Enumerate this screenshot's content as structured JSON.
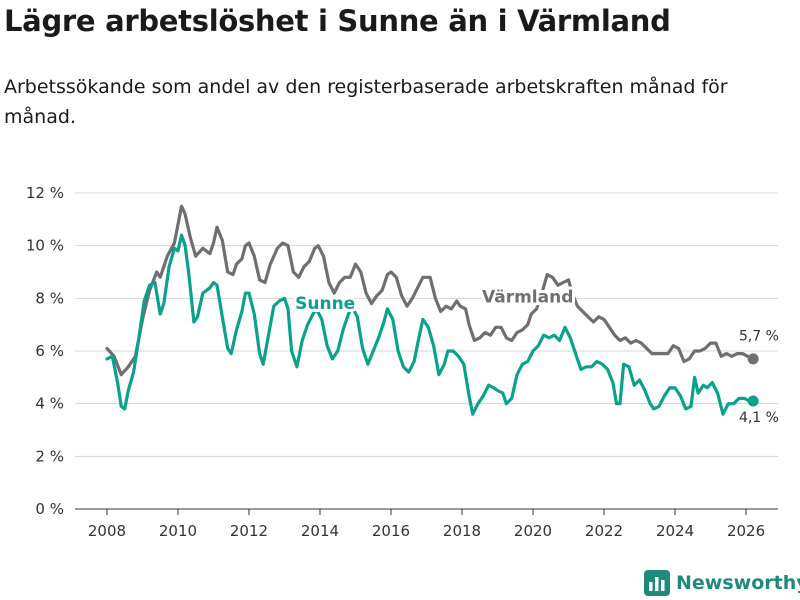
{
  "title": "Lägre arbetslöshet i Sunne än i Värmland",
  "subtitle": "Arbetssökande som andel av den registerbaserade arbetskraften månad för månad.",
  "logo": {
    "text": "Newsworthy",
    "icon": "bar-chart-logo-icon"
  },
  "colors": {
    "sunne": "#0aa28c",
    "varmland": "#6e6e73",
    "grid": "#d4d4d4",
    "brand": "#1f8a7a"
  },
  "chart_data": {
    "type": "line",
    "title": "Lägre arbetslöshet i Sunne än i Värmland",
    "xlabel": "",
    "ylabel": "",
    "xlim": [
      2007.1,
      2026.9
    ],
    "ylim": [
      0,
      12
    ],
    "x_ticks": [
      2008,
      2010,
      2012,
      2014,
      2016,
      2018,
      2020,
      2022,
      2024,
      2026
    ],
    "x_tick_labels": [
      "2008",
      "2010",
      "2012",
      "2014",
      "2016",
      "2018",
      "2020",
      "2022",
      "2024",
      "2026"
    ],
    "y_ticks": [
      0,
      2,
      4,
      6,
      8,
      10,
      12
    ],
    "y_tick_labels": [
      "0 %",
      "2 %",
      "4 %",
      "6 %",
      "8 %",
      "10 %",
      "12 %"
    ],
    "grid": true,
    "series": [
      {
        "name": "Värmland",
        "label": "Värmland",
        "end_label": "5,7 %",
        "points": [
          [
            2008.0,
            6.1
          ],
          [
            2008.2,
            5.8
          ],
          [
            2008.4,
            5.1
          ],
          [
            2008.6,
            5.4
          ],
          [
            2008.8,
            5.8
          ],
          [
            2009.0,
            7.2
          ],
          [
            2009.2,
            8.3
          ],
          [
            2009.4,
            9.0
          ],
          [
            2009.5,
            8.8
          ],
          [
            2009.7,
            9.6
          ],
          [
            2009.9,
            10.1
          ],
          [
            2010.0,
            10.8
          ],
          [
            2010.1,
            11.5
          ],
          [
            2010.2,
            11.2
          ],
          [
            2010.35,
            10.3
          ],
          [
            2010.5,
            9.6
          ],
          [
            2010.7,
            9.9
          ],
          [
            2010.9,
            9.7
          ],
          [
            2011.0,
            10.1
          ],
          [
            2011.1,
            10.7
          ],
          [
            2011.25,
            10.2
          ],
          [
            2011.4,
            9.0
          ],
          [
            2011.55,
            8.9
          ],
          [
            2011.65,
            9.3
          ],
          [
            2011.8,
            9.5
          ],
          [
            2011.9,
            10.0
          ],
          [
            2012.0,
            10.1
          ],
          [
            2012.15,
            9.6
          ],
          [
            2012.3,
            8.7
          ],
          [
            2012.45,
            8.6
          ],
          [
            2012.6,
            9.3
          ],
          [
            2012.8,
            9.9
          ],
          [
            2012.95,
            10.1
          ],
          [
            2013.1,
            10.0
          ],
          [
            2013.25,
            9.0
          ],
          [
            2013.4,
            8.8
          ],
          [
            2013.55,
            9.2
          ],
          [
            2013.7,
            9.4
          ],
          [
            2013.85,
            9.9
          ],
          [
            2013.95,
            10.0
          ],
          [
            2014.1,
            9.6
          ],
          [
            2014.25,
            8.6
          ],
          [
            2014.4,
            8.2
          ],
          [
            2014.55,
            8.6
          ],
          [
            2014.7,
            8.8
          ],
          [
            2014.85,
            8.8
          ],
          [
            2015.0,
            9.3
          ],
          [
            2015.15,
            9.0
          ],
          [
            2015.3,
            8.2
          ],
          [
            2015.45,
            7.8
          ],
          [
            2015.6,
            8.1
          ],
          [
            2015.75,
            8.3
          ],
          [
            2015.9,
            8.9
          ],
          [
            2016.0,
            9.0
          ],
          [
            2016.15,
            8.8
          ],
          [
            2016.3,
            8.1
          ],
          [
            2016.45,
            7.7
          ],
          [
            2016.6,
            8.0
          ],
          [
            2016.75,
            8.4
          ],
          [
            2016.9,
            8.8
          ],
          [
            2017.1,
            8.8
          ],
          [
            2017.25,
            8.0
          ],
          [
            2017.4,
            7.5
          ],
          [
            2017.55,
            7.7
          ],
          [
            2017.7,
            7.6
          ],
          [
            2017.85,
            7.9
          ],
          [
            2017.95,
            7.7
          ],
          [
            2018.1,
            7.6
          ],
          [
            2018.2,
            7.0
          ],
          [
            2018.35,
            6.4
          ],
          [
            2018.5,
            6.5
          ],
          [
            2018.65,
            6.7
          ],
          [
            2018.8,
            6.6
          ],
          [
            2018.95,
            6.9
          ],
          [
            2019.1,
            6.9
          ],
          [
            2019.25,
            6.5
          ],
          [
            2019.4,
            6.4
          ],
          [
            2019.55,
            6.7
          ],
          [
            2019.7,
            6.8
          ],
          [
            2019.85,
            7.0
          ],
          [
            2019.95,
            7.4
          ],
          [
            2020.1,
            7.6
          ],
          [
            2020.25,
            8.2
          ],
          [
            2020.4,
            8.9
          ],
          [
            2020.55,
            8.8
          ],
          [
            2020.7,
            8.5
          ],
          [
            2020.85,
            8.6
          ],
          [
            2021.0,
            8.7
          ],
          [
            2021.1,
            8.2
          ],
          [
            2021.25,
            7.7
          ],
          [
            2021.4,
            7.5
          ],
          [
            2021.55,
            7.3
          ],
          [
            2021.7,
            7.1
          ],
          [
            2021.85,
            7.3
          ],
          [
            2022.0,
            7.2
          ],
          [
            2022.15,
            6.9
          ],
          [
            2022.3,
            6.6
          ],
          [
            2022.45,
            6.4
          ],
          [
            2022.6,
            6.5
          ],
          [
            2022.75,
            6.3
          ],
          [
            2022.9,
            6.4
          ],
          [
            2023.05,
            6.3
          ],
          [
            2023.2,
            6.1
          ],
          [
            2023.35,
            5.9
          ],
          [
            2023.6,
            5.9
          ],
          [
            2023.8,
            5.9
          ],
          [
            2023.95,
            6.2
          ],
          [
            2024.1,
            6.1
          ],
          [
            2024.25,
            5.6
          ],
          [
            2024.4,
            5.7
          ],
          [
            2024.55,
            6.0
          ],
          [
            2024.7,
            6.0
          ],
          [
            2024.85,
            6.1
          ],
          [
            2025.0,
            6.3
          ],
          [
            2025.15,
            6.3
          ],
          [
            2025.3,
            5.8
          ],
          [
            2025.45,
            5.9
          ],
          [
            2025.6,
            5.8
          ],
          [
            2025.75,
            5.9
          ],
          [
            2025.9,
            5.9
          ],
          [
            2026.05,
            5.8
          ],
          [
            2026.2,
            5.7
          ]
        ]
      },
      {
        "name": "Sunne",
        "label": "Sunne",
        "end_label": "4,1 %",
        "points": [
          [
            2008.0,
            5.7
          ],
          [
            2008.15,
            5.8
          ],
          [
            2008.3,
            4.8
          ],
          [
            2008.4,
            3.9
          ],
          [
            2008.5,
            3.8
          ],
          [
            2008.6,
            4.5
          ],
          [
            2008.75,
            5.2
          ],
          [
            2008.9,
            6.5
          ],
          [
            2009.05,
            7.9
          ],
          [
            2009.2,
            8.5
          ],
          [
            2009.35,
            8.6
          ],
          [
            2009.5,
            7.4
          ],
          [
            2009.6,
            7.8
          ],
          [
            2009.75,
            9.2
          ],
          [
            2009.9,
            9.9
          ],
          [
            2010.0,
            9.8
          ],
          [
            2010.1,
            10.4
          ],
          [
            2010.2,
            10.0
          ],
          [
            2010.3,
            9.0
          ],
          [
            2010.45,
            7.1
          ],
          [
            2010.55,
            7.3
          ],
          [
            2010.7,
            8.2
          ],
          [
            2010.9,
            8.4
          ],
          [
            2011.0,
            8.6
          ],
          [
            2011.1,
            8.5
          ],
          [
            2011.25,
            7.3
          ],
          [
            2011.4,
            6.1
          ],
          [
            2011.5,
            5.9
          ],
          [
            2011.65,
            6.8
          ],
          [
            2011.8,
            7.5
          ],
          [
            2011.9,
            8.2
          ],
          [
            2012.0,
            8.2
          ],
          [
            2012.15,
            7.4
          ],
          [
            2012.3,
            5.9
          ],
          [
            2012.4,
            5.5
          ],
          [
            2012.55,
            6.6
          ],
          [
            2012.7,
            7.7
          ],
          [
            2012.85,
            7.9
          ],
          [
            2013.0,
            8.0
          ],
          [
            2013.1,
            7.6
          ],
          [
            2013.2,
            6.0
          ],
          [
            2013.35,
            5.4
          ],
          [
            2013.5,
            6.4
          ],
          [
            2013.65,
            7.0
          ],
          [
            2013.8,
            7.4
          ],
          [
            2013.9,
            7.6
          ],
          [
            2014.05,
            7.2
          ],
          [
            2014.2,
            6.2
          ],
          [
            2014.35,
            5.7
          ],
          [
            2014.5,
            6.0
          ],
          [
            2014.65,
            6.8
          ],
          [
            2014.8,
            7.4
          ],
          [
            2014.9,
            7.7
          ],
          [
            2015.05,
            7.3
          ],
          [
            2015.2,
            6.1
          ],
          [
            2015.35,
            5.5
          ],
          [
            2015.5,
            6.0
          ],
          [
            2015.65,
            6.5
          ],
          [
            2015.8,
            7.1
          ],
          [
            2015.9,
            7.6
          ],
          [
            2016.05,
            7.2
          ],
          [
            2016.2,
            6.0
          ],
          [
            2016.35,
            5.4
          ],
          [
            2016.5,
            5.2
          ],
          [
            2016.65,
            5.6
          ],
          [
            2016.8,
            6.6
          ],
          [
            2016.9,
            7.2
          ],
          [
            2017.05,
            6.9
          ],
          [
            2017.2,
            6.2
          ],
          [
            2017.35,
            5.1
          ],
          [
            2017.5,
            5.5
          ],
          [
            2017.6,
            6.0
          ],
          [
            2017.75,
            6.0
          ],
          [
            2017.9,
            5.8
          ],
          [
            2018.05,
            5.5
          ],
          [
            2018.2,
            4.3
          ],
          [
            2018.3,
            3.6
          ],
          [
            2018.45,
            4.0
          ],
          [
            2018.6,
            4.3
          ],
          [
            2018.75,
            4.7
          ],
          [
            2018.9,
            4.6
          ],
          [
            2019.0,
            4.5
          ],
          [
            2019.15,
            4.4
          ],
          [
            2019.25,
            4.0
          ],
          [
            2019.4,
            4.2
          ],
          [
            2019.55,
            5.1
          ],
          [
            2019.7,
            5.5
          ],
          [
            2019.85,
            5.6
          ],
          [
            2020.0,
            6.0
          ],
          [
            2020.15,
            6.2
          ],
          [
            2020.3,
            6.6
          ],
          [
            2020.45,
            6.5
          ],
          [
            2020.6,
            6.6
          ],
          [
            2020.75,
            6.4
          ],
          [
            2020.9,
            6.9
          ],
          [
            2021.05,
            6.5
          ],
          [
            2021.2,
            5.9
          ],
          [
            2021.35,
            5.3
          ],
          [
            2021.5,
            5.4
          ],
          [
            2021.65,
            5.4
          ],
          [
            2021.8,
            5.6
          ],
          [
            2021.95,
            5.5
          ],
          [
            2022.1,
            5.3
          ],
          [
            2022.25,
            4.8
          ],
          [
            2022.35,
            4.0
          ],
          [
            2022.45,
            4.0
          ],
          [
            2022.55,
            5.5
          ],
          [
            2022.7,
            5.4
          ],
          [
            2022.85,
            4.7
          ],
          [
            2023.0,
            4.9
          ],
          [
            2023.15,
            4.5
          ],
          [
            2023.3,
            4.0
          ],
          [
            2023.4,
            3.8
          ],
          [
            2023.55,
            3.9
          ],
          [
            2023.7,
            4.3
          ],
          [
            2023.85,
            4.6
          ],
          [
            2024.0,
            4.6
          ],
          [
            2024.15,
            4.3
          ],
          [
            2024.3,
            3.8
          ],
          [
            2024.45,
            3.9
          ],
          [
            2024.55,
            5.0
          ],
          [
            2024.65,
            4.4
          ],
          [
            2024.8,
            4.7
          ],
          [
            2024.9,
            4.6
          ],
          [
            2025.05,
            4.8
          ],
          [
            2025.2,
            4.4
          ],
          [
            2025.35,
            3.6
          ],
          [
            2025.5,
            4.0
          ],
          [
            2025.65,
            4.0
          ],
          [
            2025.8,
            4.2
          ],
          [
            2025.95,
            4.2
          ],
          [
            2026.1,
            4.1
          ],
          [
            2026.2,
            4.1
          ]
        ]
      }
    ]
  }
}
